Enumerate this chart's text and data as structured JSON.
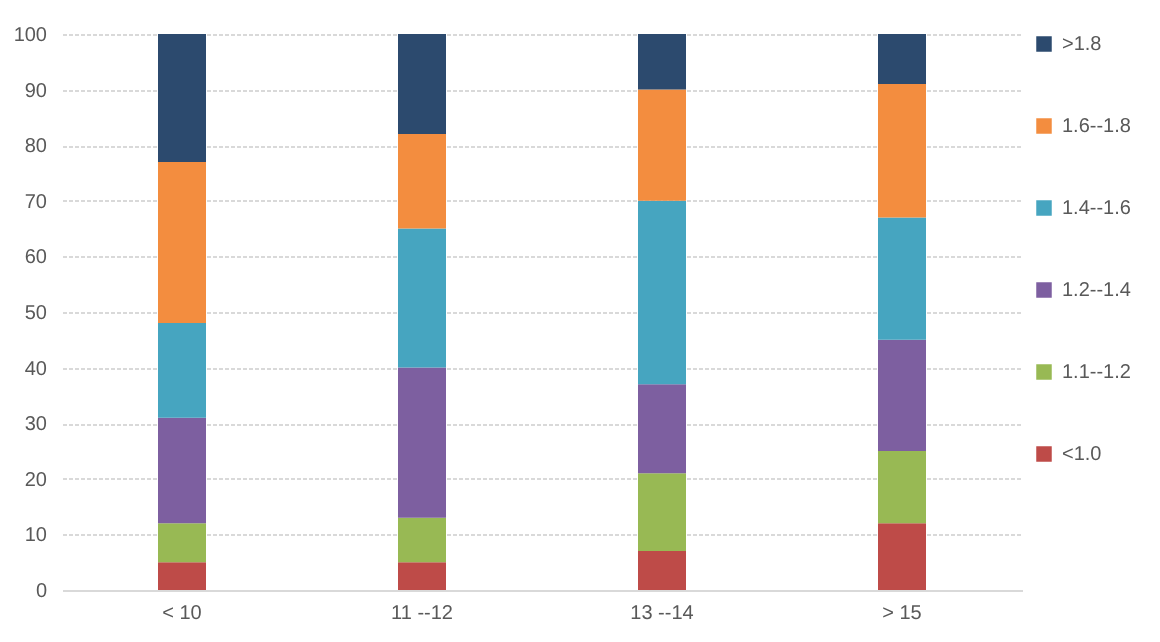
{
  "chart_data": {
    "type": "bar",
    "stacked": true,
    "categories": [
      "< 10",
      "11 --12",
      "13 --14",
      "> 15"
    ],
    "series": [
      {
        "name": "<1.0",
        "color": "#be4b48",
        "values": [
          5,
          5,
          7,
          12
        ]
      },
      {
        "name": "1.1--1.2",
        "color": "#98b954",
        "values": [
          7,
          8,
          14,
          13
        ]
      },
      {
        "name": "1.2--1.4",
        "color": "#7d5fa0",
        "values": [
          19,
          27,
          16,
          20
        ]
      },
      {
        "name": "1.4--1.6",
        "color": "#46a5c0",
        "values": [
          17,
          25,
          33,
          22
        ]
      },
      {
        "name": "1.6--1.8",
        "color": "#f38d3f",
        "values": [
          29,
          17,
          20,
          24
        ]
      },
      {
        "name": ">1.8",
        "color": "#2c4a6e",
        "values": [
          23,
          18,
          10,
          9
        ]
      }
    ],
    "ylim": [
      0,
      100
    ],
    "yticks": [
      0,
      10,
      20,
      30,
      40,
      50,
      60,
      70,
      80,
      90,
      100
    ],
    "grid": "y",
    "legend": "right"
  }
}
